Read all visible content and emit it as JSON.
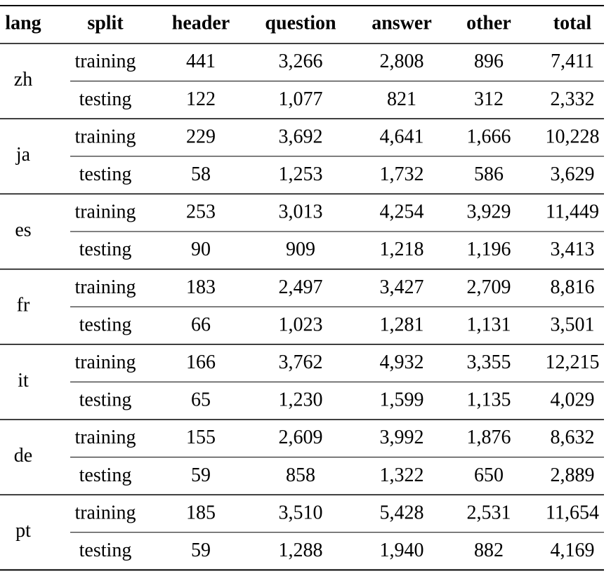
{
  "table": {
    "columns": [
      "lang",
      "split",
      "header",
      "question",
      "answer",
      "other",
      "total"
    ],
    "groups": [
      {
        "lang": "zh",
        "rows": [
          [
            "training",
            "441",
            "3,266",
            "2,808",
            "896",
            "7,411"
          ],
          [
            "testing",
            "122",
            "1,077",
            "821",
            "312",
            "2,332"
          ]
        ]
      },
      {
        "lang": "ja",
        "rows": [
          [
            "training",
            "229",
            "3,692",
            "4,641",
            "1,666",
            "10,228"
          ],
          [
            "testing",
            "58",
            "1,253",
            "1,732",
            "586",
            "3,629"
          ]
        ]
      },
      {
        "lang": "es",
        "rows": [
          [
            "training",
            "253",
            "3,013",
            "4,254",
            "3,929",
            "11,449"
          ],
          [
            "testing",
            "90",
            "909",
            "1,218",
            "1,196",
            "3,413"
          ]
        ]
      },
      {
        "lang": "fr",
        "rows": [
          [
            "training",
            "183",
            "2,497",
            "3,427",
            "2,709",
            "8,816"
          ],
          [
            "testing",
            "66",
            "1,023",
            "1,281",
            "1,131",
            "3,501"
          ]
        ]
      },
      {
        "lang": "it",
        "rows": [
          [
            "training",
            "166",
            "3,762",
            "4,932",
            "3,355",
            "12,215"
          ],
          [
            "testing",
            "65",
            "1,230",
            "1,599",
            "1,135",
            "4,029"
          ]
        ]
      },
      {
        "lang": "de",
        "rows": [
          [
            "training",
            "155",
            "2,609",
            "3,992",
            "1,876",
            "8,632"
          ],
          [
            "testing",
            "59",
            "858",
            "1,322",
            "650",
            "2,889"
          ]
        ]
      },
      {
        "lang": "pt",
        "rows": [
          [
            "training",
            "185",
            "3,510",
            "5,428",
            "2,531",
            "11,654"
          ],
          [
            "testing",
            "59",
            "1,288",
            "1,940",
            "882",
            "4,169"
          ]
        ]
      }
    ]
  }
}
